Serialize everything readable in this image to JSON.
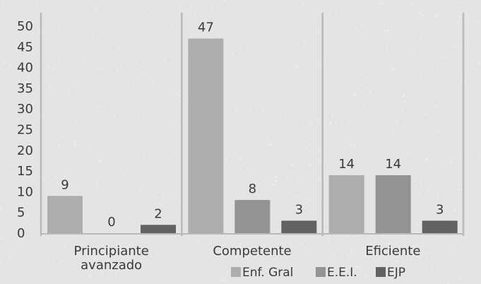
{
  "chart_data": {
    "type": "bar",
    "categories": [
      [
        "Principiante",
        "avanzado"
      ],
      [
        "Competente"
      ],
      [
        "Eficiente"
      ]
    ],
    "series": [
      {
        "name": "Enf. Gral",
        "values": [
          9,
          47,
          14
        ],
        "color": "#acadae"
      },
      {
        "name": "E.E.I.",
        "values": [
          0,
          8,
          14
        ],
        "color": "#929394"
      },
      {
        "name": "EJP",
        "values": [
          2,
          3,
          3
        ],
        "color": "#616263"
      }
    ],
    "yticks": [
      0,
      5,
      10,
      15,
      20,
      25,
      30,
      35,
      40,
      45,
      50
    ],
    "ylim": [
      0,
      50
    ],
    "grid": false,
    "legend_position": "bottom-right",
    "background": "#e4e4e5",
    "divider_color": "#b9b9ba"
  }
}
